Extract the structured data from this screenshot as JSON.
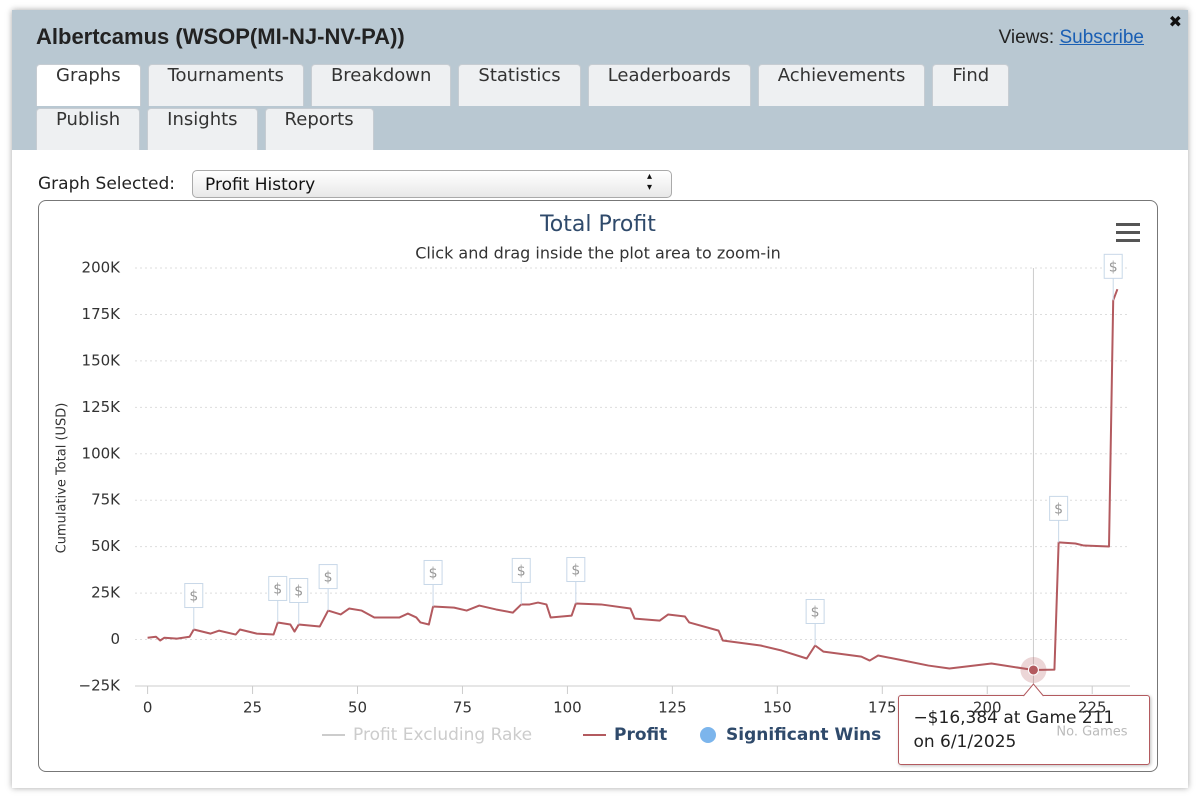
{
  "header": {
    "title": "Albertcamus (WSOP(MI-NJ-NV-PA))",
    "views_label": "Views:",
    "views_link": "Subscribe",
    "close": "✖"
  },
  "tabs": [
    "Graphs",
    "Tournaments",
    "Breakdown",
    "Statistics",
    "Leaderboards",
    "Achievements",
    "Find",
    "Publish",
    "Insights",
    "Reports"
  ],
  "selector": {
    "label": "Graph Selected:",
    "value": "Profit History"
  },
  "chart_data": {
    "type": "line",
    "title": "Total Profit",
    "subtitle": "Click and drag inside the plot area to zoom-in",
    "y_label": "Cumulative Total (USD)",
    "x_label": "No. Games",
    "xlim": [
      -3,
      234
    ],
    "xticks": [
      0,
      25,
      50,
      75,
      100,
      125,
      150,
      175,
      200,
      225
    ],
    "ylim": [
      -25000,
      200000
    ],
    "yticks": [
      {
        "value": -25000,
        "label": "−25K"
      },
      0,
      {
        "value": 25000,
        "label": "25K"
      },
      {
        "value": 50000,
        "label": "50K"
      },
      {
        "value": 75000,
        "label": "75K"
      },
      {
        "value": 100000,
        "label": "100K"
      },
      {
        "value": 125000,
        "label": "125K"
      },
      {
        "value": 150000,
        "label": "150K"
      },
      {
        "value": 175000,
        "label": "175K"
      },
      {
        "value": 200000,
        "label": "200K"
      }
    ],
    "grid": true,
    "series": [
      {
        "name": "Profit Excluding Rake",
        "color": "#cccccc",
        "visible": false
      },
      {
        "name": "Profit",
        "color": "#b35a5f",
        "x": [
          0,
          2,
          3,
          4,
          7,
          10,
          11,
          15,
          17,
          21,
          22,
          26,
          30,
          31,
          34,
          35,
          36,
          41,
          43,
          46,
          48,
          51,
          54,
          60,
          62,
          64,
          65,
          67,
          68,
          73,
          76,
          79,
          83,
          87,
          89,
          91,
          93,
          95,
          96,
          101,
          102,
          108,
          115,
          116,
          122,
          124,
          128,
          129,
          136,
          137,
          146,
          151,
          157,
          159,
          161,
          170,
          172,
          174,
          179,
          186,
          191,
          201,
          211,
          216,
          217,
          221,
          223,
          229,
          230,
          231
        ],
        "values": [
          1000,
          1500,
          -500,
          1000,
          500,
          1500,
          5400,
          3200,
          4800,
          2700,
          5400,
          3200,
          2700,
          9200,
          8100,
          4300,
          8100,
          7000,
          15600,
          13500,
          16700,
          15600,
          11900,
          11900,
          14000,
          11900,
          9200,
          8100,
          17800,
          17200,
          15600,
          18300,
          16200,
          14500,
          18900,
          18900,
          19900,
          18900,
          11900,
          12900,
          19400,
          18900,
          16700,
          11300,
          10200,
          13500,
          12400,
          9200,
          4800,
          -500,
          -3200,
          -5900,
          -10200,
          -3200,
          -6500,
          -9200,
          -11300,
          -8600,
          -10800,
          -14000,
          -15600,
          -12900,
          -16384,
          -16200,
          52300,
          51700,
          50600,
          50100,
          182600,
          188600
        ]
      }
    ],
    "flags": {
      "name": "Significant Wins",
      "color": "#7cb5ec",
      "label": "$",
      "x": [
        11,
        31,
        36,
        43,
        68,
        89,
        102,
        159,
        217,
        230
      ],
      "values": [
        5400,
        9200,
        8100,
        15600,
        17800,
        18900,
        19400,
        -3200,
        52300,
        182600
      ]
    },
    "tooltip": {
      "x": 211,
      "text": "−$16,384 at Game 211 on 6/1/2025"
    }
  }
}
